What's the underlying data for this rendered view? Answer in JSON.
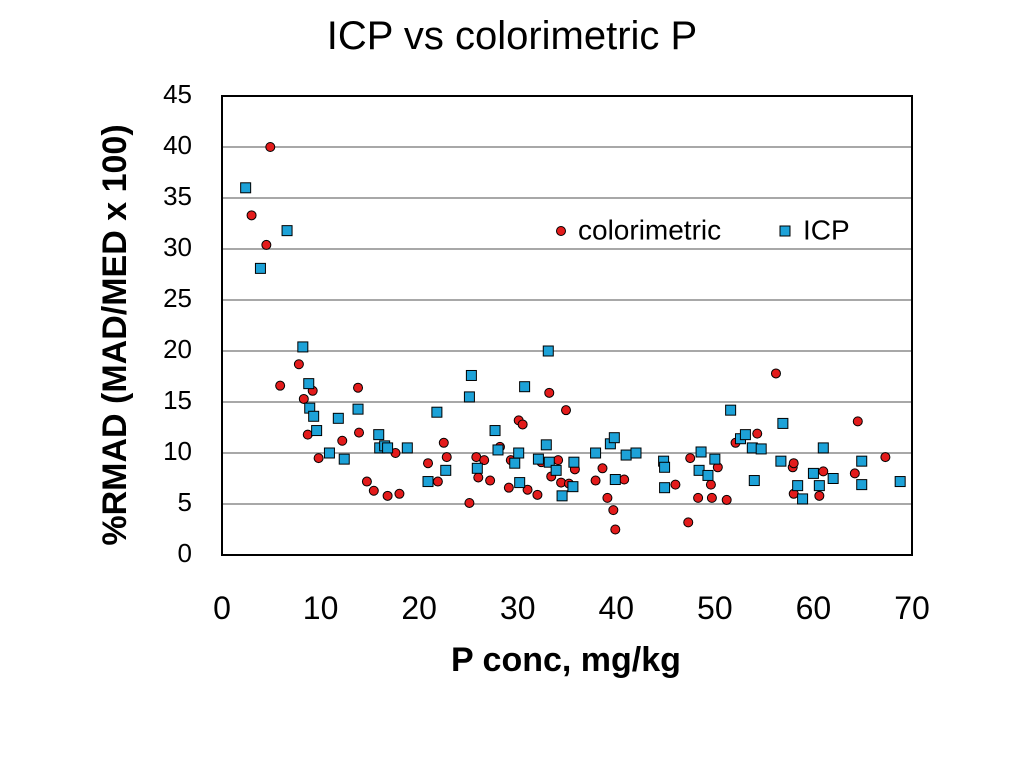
{
  "chart_data": {
    "type": "scatter",
    "title": "ICP vs colorimetric P",
    "xlabel": "P conc, mg/kg",
    "ylabel": "%RMAD (MAD/MED x 100)",
    "xlim": [
      0,
      70
    ],
    "ylim": [
      0,
      45
    ],
    "xticks": [
      0,
      10,
      20,
      30,
      40,
      50,
      60,
      70
    ],
    "yticks": [
      0,
      5,
      10,
      15,
      20,
      25,
      30,
      35,
      40,
      45
    ],
    "grid": "horizontal",
    "legend_position": "upper-right",
    "series": [
      {
        "name": "colorimetric",
        "marker": "circle",
        "color": "#e31b1b",
        "points": [
          [
            3.0,
            33.3
          ],
          [
            4.5,
            30.4
          ],
          [
            4.9,
            40.0
          ],
          [
            5.9,
            16.6
          ],
          [
            7.8,
            18.7
          ],
          [
            8.3,
            15.3
          ],
          [
            8.7,
            11.8
          ],
          [
            9.2,
            16.1
          ],
          [
            9.8,
            9.5
          ],
          [
            12.2,
            11.2
          ],
          [
            13.8,
            16.4
          ],
          [
            13.9,
            12.0
          ],
          [
            14.7,
            7.2
          ],
          [
            15.4,
            6.3
          ],
          [
            16.8,
            5.8
          ],
          [
            17.6,
            10.0
          ],
          [
            18.0,
            6.0
          ],
          [
            20.9,
            9.0
          ],
          [
            21.9,
            7.2
          ],
          [
            22.5,
            11.0
          ],
          [
            22.8,
            9.6
          ],
          [
            25.1,
            5.1
          ],
          [
            25.8,
            9.6
          ],
          [
            26.0,
            7.6
          ],
          [
            26.6,
            9.3
          ],
          [
            27.2,
            7.3
          ],
          [
            28.2,
            10.6
          ],
          [
            29.1,
            6.6
          ],
          [
            29.3,
            9.3
          ],
          [
            30.1,
            13.2
          ],
          [
            30.5,
            12.8
          ],
          [
            31.0,
            6.4
          ],
          [
            32.0,
            5.9
          ],
          [
            32.4,
            9.1
          ],
          [
            33.2,
            15.9
          ],
          [
            33.4,
            7.7
          ],
          [
            34.1,
            9.3
          ],
          [
            34.4,
            7.1
          ],
          [
            34.9,
            14.2
          ],
          [
            35.2,
            7.0
          ],
          [
            35.8,
            8.4
          ],
          [
            37.9,
            7.3
          ],
          [
            38.6,
            8.5
          ],
          [
            39.1,
            5.6
          ],
          [
            39.7,
            4.4
          ],
          [
            39.9,
            2.5
          ],
          [
            40.8,
            7.4
          ],
          [
            46.0,
            6.9
          ],
          [
            47.3,
            3.2
          ],
          [
            47.5,
            9.5
          ],
          [
            48.3,
            5.6
          ],
          [
            49.6,
            6.9
          ],
          [
            49.7,
            5.6
          ],
          [
            50.3,
            8.6
          ],
          [
            51.2,
            5.4
          ],
          [
            52.1,
            11.0
          ],
          [
            54.3,
            11.9
          ],
          [
            56.2,
            17.8
          ],
          [
            57.9,
            8.6
          ],
          [
            58.0,
            9.0
          ],
          [
            58.0,
            6.0
          ],
          [
            60.6,
            5.8
          ],
          [
            61.0,
            8.2
          ],
          [
            64.2,
            8.0
          ],
          [
            64.5,
            13.1
          ],
          [
            67.3,
            9.6
          ]
        ]
      },
      {
        "name": "ICP",
        "marker": "square",
        "color": "#1da2d8",
        "points": [
          [
            2.4,
            36.0
          ],
          [
            3.9,
            28.1
          ],
          [
            6.6,
            31.8
          ],
          [
            8.2,
            20.4
          ],
          [
            8.8,
            16.8
          ],
          [
            8.9,
            14.4
          ],
          [
            9.3,
            13.6
          ],
          [
            9.6,
            12.2
          ],
          [
            10.9,
            10.0
          ],
          [
            11.8,
            13.4
          ],
          [
            12.4,
            9.4
          ],
          [
            13.8,
            14.3
          ],
          [
            15.9,
            11.8
          ],
          [
            16.0,
            10.5
          ],
          [
            16.5,
            10.7
          ],
          [
            16.8,
            10.5
          ],
          [
            18.8,
            10.5
          ],
          [
            20.9,
            7.2
          ],
          [
            21.8,
            14.0
          ],
          [
            22.7,
            8.3
          ],
          [
            25.1,
            15.5
          ],
          [
            25.3,
            17.6
          ],
          [
            25.9,
            8.5
          ],
          [
            27.7,
            12.2
          ],
          [
            28.0,
            10.3
          ],
          [
            29.7,
            9.0
          ],
          [
            30.1,
            10.0
          ],
          [
            30.2,
            7.1
          ],
          [
            30.7,
            16.5
          ],
          [
            32.1,
            9.4
          ],
          [
            32.9,
            10.8
          ],
          [
            33.1,
            20.0
          ],
          [
            33.2,
            9.1
          ],
          [
            33.9,
            8.3
          ],
          [
            34.5,
            5.8
          ],
          [
            35.6,
            6.7
          ],
          [
            35.7,
            9.1
          ],
          [
            37.9,
            10.0
          ],
          [
            39.4,
            10.9
          ],
          [
            39.8,
            11.5
          ],
          [
            39.9,
            7.4
          ],
          [
            41.0,
            9.8
          ],
          [
            42.0,
            10.0
          ],
          [
            44.8,
            9.2
          ],
          [
            44.9,
            8.6
          ],
          [
            44.9,
            6.6
          ],
          [
            48.4,
            8.3
          ],
          [
            48.6,
            10.1
          ],
          [
            49.3,
            7.8
          ],
          [
            50.0,
            9.4
          ],
          [
            51.6,
            14.2
          ],
          [
            52.6,
            11.4
          ],
          [
            53.1,
            11.8
          ],
          [
            53.8,
            10.5
          ],
          [
            54.0,
            7.3
          ],
          [
            54.7,
            10.4
          ],
          [
            56.7,
            9.2
          ],
          [
            56.9,
            12.9
          ],
          [
            58.4,
            6.8
          ],
          [
            58.9,
            5.5
          ],
          [
            60.0,
            8.0
          ],
          [
            60.6,
            6.8
          ],
          [
            61.0,
            10.5
          ],
          [
            62.0,
            7.5
          ],
          [
            64.9,
            9.2
          ],
          [
            64.9,
            6.9
          ],
          [
            68.8,
            7.2
          ]
        ]
      }
    ]
  }
}
